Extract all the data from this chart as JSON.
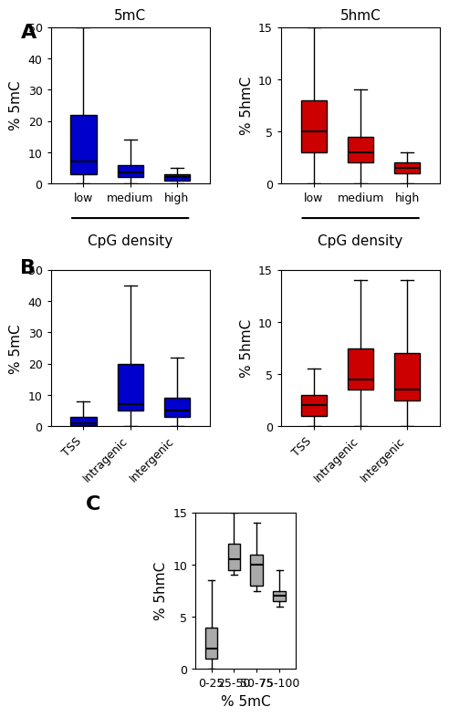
{
  "panel_A": {
    "left": {
      "title": "5mC",
      "ylabel": "% 5mC",
      "xlabel": "CpG density",
      "categories": [
        "low",
        "medium",
        "high"
      ],
      "color": "#0000CC",
      "ylim": [
        0,
        50
      ],
      "yticks": [
        0,
        10,
        20,
        30,
        40,
        50
      ],
      "boxes": [
        {
          "whislo": 0,
          "q1": 3,
          "med": 7,
          "q3": 22,
          "whishi": 50
        },
        {
          "whislo": 0,
          "q1": 2,
          "med": 3.5,
          "q3": 6,
          "whishi": 14
        },
        {
          "whislo": 0,
          "q1": 1,
          "med": 2,
          "q3": 3,
          "whishi": 5
        }
      ]
    },
    "right": {
      "title": "5hmC",
      "ylabel": "% 5hmC",
      "xlabel": "CpG density",
      "categories": [
        "low",
        "medium",
        "high"
      ],
      "color": "#CC0000",
      "ylim": [
        0,
        15
      ],
      "yticks": [
        0,
        5,
        10,
        15
      ],
      "boxes": [
        {
          "whislo": 0,
          "q1": 3,
          "med": 5,
          "q3": 8,
          "whishi": 15
        },
        {
          "whislo": 0,
          "q1": 2,
          "med": 3,
          "q3": 4.5,
          "whishi": 9
        },
        {
          "whislo": 0,
          "q1": 1,
          "med": 1.5,
          "q3": 2,
          "whishi": 3
        }
      ]
    }
  },
  "panel_B": {
    "left": {
      "ylabel": "% 5mC",
      "categories": [
        "TSS",
        "Intragenic",
        "Intergenic"
      ],
      "color": "#0000CC",
      "ylim": [
        0,
        50
      ],
      "yticks": [
        0,
        10,
        20,
        30,
        40,
        50
      ],
      "boxes": [
        {
          "whislo": 0,
          "q1": 0.5,
          "med": 1,
          "q3": 3,
          "whishi": 8
        },
        {
          "whislo": 0,
          "q1": 5,
          "med": 7,
          "q3": 20,
          "whishi": 45
        },
        {
          "whislo": 0,
          "q1": 3,
          "med": 5,
          "q3": 9,
          "whishi": 22
        }
      ]
    },
    "right": {
      "ylabel": "% 5hmC",
      "categories": [
        "TSS",
        "Intragenic",
        "Intergenic"
      ],
      "color": "#CC0000",
      "ylim": [
        0,
        15
      ],
      "yticks": [
        0,
        5,
        10,
        15
      ],
      "boxes": [
        {
          "whislo": 0,
          "q1": 1,
          "med": 2,
          "q3": 3,
          "whishi": 5.5
        },
        {
          "whislo": 0,
          "q1": 3.5,
          "med": 4.5,
          "q3": 7.5,
          "whishi": 14
        },
        {
          "whislo": 0,
          "q1": 2.5,
          "med": 3.5,
          "q3": 7,
          "whishi": 14
        }
      ]
    }
  },
  "panel_C": {
    "ylabel": "% 5hmC",
    "xlabel": "% 5mC",
    "categories": [
      "0-25",
      "25-50",
      "50-75",
      "75-100"
    ],
    "color": "#AAAAAA",
    "ylim": [
      0,
      15
    ],
    "yticks": [
      0,
      5,
      10,
      15
    ],
    "boxes": [
      {
        "whislo": 0,
        "q1": 1,
        "med": 2,
        "q3": 4,
        "whishi": 8.5
      },
      {
        "whislo": 9,
        "q1": 9.5,
        "med": 10.5,
        "q3": 12,
        "whishi": 15
      },
      {
        "whislo": 7.5,
        "q1": 8,
        "med": 10,
        "q3": 11,
        "whishi": 14
      },
      {
        "whislo": 6,
        "q1": 6.5,
        "med": 7,
        "q3": 7.5,
        "whishi": 9.5
      }
    ]
  },
  "bg_color": "#FFFFFF",
  "label_fontsize": 11,
  "tick_fontsize": 9,
  "panel_label_fontsize": 16
}
